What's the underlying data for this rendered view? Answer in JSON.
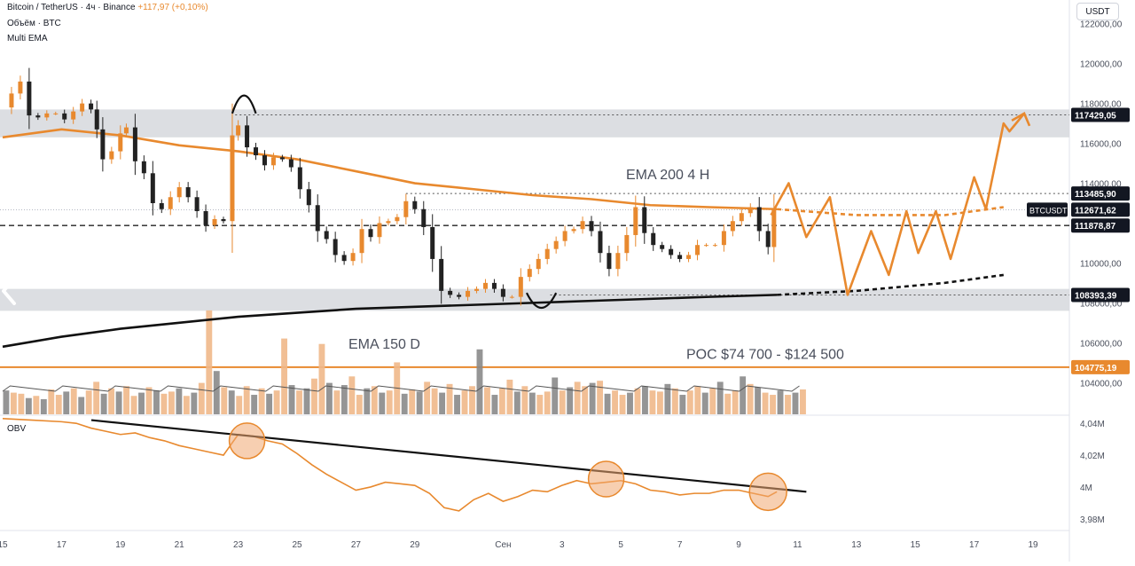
{
  "header": {
    "symbol_line": "Bitcoin / TetherUS · 4ч · Binance",
    "change": "+117,97 (+0,10%)",
    "volume_label": "Объём · BTC",
    "ema_label": "Multi EMA",
    "currency": "USDT"
  },
  "chart_data": {
    "type": "candlestick",
    "price_axis": {
      "ticks": [
        {
          "value": 122000,
          "label": "122000,00"
        },
        {
          "value": 120000,
          "label": "120000,00"
        },
        {
          "value": 118000,
          "label": "118000,00"
        },
        {
          "value": 116000,
          "label": "116000,00"
        },
        {
          "value": 114000,
          "label": "114000,00"
        },
        {
          "value": 112000,
          "label": "112000,00"
        },
        {
          "value": 110000,
          "label": "110000,00"
        },
        {
          "value": 108000,
          "label": "108000,00"
        },
        {
          "value": 106000,
          "label": "106000,00"
        },
        {
          "value": 104000,
          "label": "104000,00"
        }
      ],
      "range": [
        103700,
        122300
      ]
    },
    "price_labels": [
      {
        "value": 117429.05,
        "label": "117429,05",
        "style": "dark",
        "line": "dotted"
      },
      {
        "value": 113485.9,
        "label": "113485,90",
        "style": "dark",
        "line": "dotted"
      },
      {
        "value": 112671.62,
        "label": "112671,62",
        "style": "dark",
        "line": "none"
      },
      {
        "value": 111878.87,
        "label": "111878,87",
        "style": "dark",
        "line": "dashed"
      },
      {
        "value": 108393.39,
        "label": "108393,39",
        "style": "dark",
        "line": "dotted"
      },
      {
        "value": 104775.19,
        "label": "104775,19",
        "style": "orange",
        "line": "solid"
      }
    ],
    "symbol_tag": "BTCUSDT",
    "zones": [
      {
        "from": 116300,
        "to": 117700
      },
      {
        "from": 107600,
        "to": 108700
      }
    ],
    "date_axis": {
      "ticks": [
        {
          "day": 15,
          "label": "15"
        },
        {
          "day": 17,
          "label": "17"
        },
        {
          "day": 19,
          "label": "19"
        },
        {
          "day": 21,
          "label": "21"
        },
        {
          "day": 23,
          "label": "23"
        },
        {
          "day": 25,
          "label": "25"
        },
        {
          "day": 27,
          "label": "27"
        },
        {
          "day": 29,
          "label": "29"
        },
        {
          "day": 32,
          "label": "Сен"
        },
        {
          "day": 34,
          "label": "3"
        },
        {
          "day": 36,
          "label": "5"
        },
        {
          "day": 38,
          "label": "7"
        },
        {
          "day": 40,
          "label": "9"
        },
        {
          "day": 42,
          "label": "11"
        },
        {
          "day": 44,
          "label": "13"
        },
        {
          "day": 46,
          "label": "15"
        },
        {
          "day": 48,
          "label": "17"
        },
        {
          "day": 50,
          "label": "19"
        }
      ],
      "range": [
        15,
        50.2
      ]
    },
    "candles_close_path": [
      [
        15.0,
        117800
      ],
      [
        15.3,
        118500
      ],
      [
        15.6,
        119100
      ],
      [
        15.9,
        117400
      ],
      [
        16.2,
        117300
      ],
      [
        16.5,
        117500
      ],
      [
        16.8,
        117500
      ],
      [
        17.1,
        117200
      ],
      [
        17.4,
        117600
      ],
      [
        17.7,
        118000
      ],
      [
        18.0,
        117700
      ],
      [
        18.2,
        116700
      ],
      [
        18.4,
        115200
      ],
      [
        18.7,
        115600
      ],
      [
        19.0,
        116500
      ],
      [
        19.2,
        116800
      ],
      [
        19.5,
        115100
      ],
      [
        19.8,
        114500
      ],
      [
        20.1,
        113000
      ],
      [
        20.4,
        112700
      ],
      [
        20.7,
        113300
      ],
      [
        21.0,
        113800
      ],
      [
        21.3,
        113300
      ],
      [
        21.6,
        112600
      ],
      [
        21.9,
        111900
      ],
      [
        22.2,
        112200
      ],
      [
        22.5,
        112100
      ],
      [
        22.8,
        116400
      ],
      [
        23.0,
        116900
      ],
      [
        23.3,
        115800
      ],
      [
        23.6,
        115400
      ],
      [
        23.9,
        114900
      ],
      [
        24.2,
        115300
      ],
      [
        24.5,
        115200
      ],
      [
        24.8,
        114800
      ],
      [
        25.1,
        113700
      ],
      [
        25.4,
        112900
      ],
      [
        25.7,
        111600
      ],
      [
        26.0,
        111200
      ],
      [
        26.3,
        110400
      ],
      [
        26.6,
        110100
      ],
      [
        26.9,
        110500
      ],
      [
        27.2,
        111700
      ],
      [
        27.5,
        111300
      ],
      [
        27.8,
        112000
      ],
      [
        28.1,
        112100
      ],
      [
        28.4,
        112300
      ],
      [
        28.7,
        113100
      ],
      [
        29.0,
        112700
      ],
      [
        29.3,
        111800
      ],
      [
        29.6,
        110200
      ],
      [
        29.9,
        108600
      ],
      [
        30.2,
        108400
      ],
      [
        30.5,
        108300
      ],
      [
        30.8,
        108600
      ],
      [
        31.1,
        108700
      ],
      [
        31.4,
        109000
      ],
      [
        31.7,
        108700
      ],
      [
        32.0,
        108300
      ],
      [
        32.3,
        108300
      ],
      [
        32.6,
        109300
      ],
      [
        32.9,
        109700
      ],
      [
        33.2,
        110200
      ],
      [
        33.5,
        110700
      ],
      [
        33.8,
        111100
      ],
      [
        34.1,
        111600
      ],
      [
        34.4,
        111700
      ],
      [
        34.7,
        112100
      ],
      [
        35.0,
        111600
      ],
      [
        35.3,
        110500
      ],
      [
        35.6,
        109700
      ],
      [
        35.9,
        110500
      ],
      [
        36.2,
        111400
      ],
      [
        36.5,
        112800
      ],
      [
        36.8,
        111500
      ],
      [
        37.1,
        110900
      ],
      [
        37.4,
        110700
      ],
      [
        37.7,
        110400
      ],
      [
        38.0,
        110200
      ],
      [
        38.3,
        110400
      ],
      [
        38.6,
        110900
      ],
      [
        38.9,
        110900
      ],
      [
        39.2,
        110900
      ],
      [
        39.5,
        111600
      ],
      [
        39.8,
        112100
      ],
      [
        40.1,
        112500
      ],
      [
        40.4,
        112800
      ],
      [
        40.7,
        111600
      ],
      [
        41.0,
        110800
      ],
      [
        41.2,
        112700
      ]
    ],
    "ema_4h": [
      [
        15,
        116300
      ],
      [
        17,
        116700
      ],
      [
        19,
        116400
      ],
      [
        21,
        115900
      ],
      [
        23,
        115600
      ],
      [
        25,
        115200
      ],
      [
        27,
        114600
      ],
      [
        29,
        114000
      ],
      [
        31,
        113700
      ],
      [
        33,
        113400
      ],
      [
        35,
        113200
      ],
      [
        37,
        112900
      ],
      [
        39,
        112800
      ],
      [
        41.3,
        112700
      ]
    ],
    "ema_4h_projection": [
      [
        41.3,
        112700
      ],
      [
        44,
        112400
      ],
      [
        47,
        112400
      ],
      [
        49,
        112800
      ]
    ],
    "ema_150d": [
      [
        15,
        105800
      ],
      [
        17,
        106300
      ],
      [
        19,
        106700
      ],
      [
        21,
        107000
      ],
      [
        23,
        107300
      ],
      [
        25,
        107500
      ],
      [
        27,
        107700
      ],
      [
        29,
        107800
      ],
      [
        31,
        107900
      ],
      [
        33,
        108000
      ],
      [
        35,
        108100
      ],
      [
        37,
        108200
      ],
      [
        39,
        108300
      ],
      [
        41.3,
        108400
      ]
    ],
    "ema_150d_projection": [
      [
        41.3,
        108400
      ],
      [
        44,
        108600
      ],
      [
        47,
        109000
      ],
      [
        49,
        109400
      ]
    ],
    "forecast_path": [
      [
        41.1,
        112400
      ],
      [
        41.7,
        114000
      ],
      [
        42.3,
        111300
      ],
      [
        43.1,
        113300
      ],
      [
        43.7,
        108400
      ],
      [
        44.5,
        111600
      ],
      [
        45.1,
        109400
      ],
      [
        45.7,
        112600
      ],
      [
        46.1,
        110500
      ],
      [
        46.7,
        112600
      ],
      [
        47.2,
        110200
      ],
      [
        48.0,
        114300
      ],
      [
        48.4,
        112700
      ],
      [
        49.0,
        117000
      ],
      [
        49.2,
        116600
      ],
      [
        49.7,
        117500
      ],
      [
        49.5,
        116900
      ]
    ],
    "volume_profile_line": {
      "value": 104775.19
    },
    "obv": {
      "axis": {
        "ticks": [
          {
            "value": 4.04,
            "label": "4,04M"
          },
          {
            "value": 4.02,
            "label": "4,02M"
          },
          {
            "value": 4.0,
            "label": "4M"
          },
          {
            "value": 3.98,
            "label": "3,98M"
          }
        ],
        "range": [
          3.976,
          4.044
        ]
      },
      "series": [
        [
          15,
          4.043
        ],
        [
          16,
          4.042
        ],
        [
          17,
          4.041
        ],
        [
          17.5,
          4.04
        ],
        [
          18,
          4.037
        ],
        [
          18.5,
          4.035
        ],
        [
          19,
          4.033
        ],
        [
          19.5,
          4.034
        ],
        [
          20,
          4.031
        ],
        [
          20.5,
          4.029
        ],
        [
          21,
          4.026
        ],
        [
          21.5,
          4.024
        ],
        [
          22,
          4.022
        ],
        [
          22.5,
          4.02
        ],
        [
          23,
          4.033
        ],
        [
          23.5,
          4.032
        ],
        [
          24,
          4.029
        ],
        [
          24.5,
          4.027
        ],
        [
          25,
          4.021
        ],
        [
          25.5,
          4.014
        ],
        [
          26,
          4.008
        ],
        [
          26.5,
          4.003
        ],
        [
          27,
          3.998
        ],
        [
          27.5,
          4.0
        ],
        [
          28,
          4.003
        ],
        [
          28.5,
          4.002
        ],
        [
          29,
          4.001
        ],
        [
          29.5,
          3.996
        ],
        [
          30,
          3.987
        ],
        [
          30.5,
          3.985
        ],
        [
          31,
          3.992
        ],
        [
          31.5,
          3.996
        ],
        [
          32,
          3.991
        ],
        [
          32.5,
          3.994
        ],
        [
          33,
          3.998
        ],
        [
          33.5,
          3.997
        ],
        [
          34,
          4.001
        ],
        [
          34.5,
          4.004
        ],
        [
          35,
          4.002
        ],
        [
          35.5,
          4.003
        ],
        [
          36,
          4.004
        ],
        [
          36.5,
          4.002
        ],
        [
          37,
          3.998
        ],
        [
          37.5,
          3.997
        ],
        [
          38,
          3.995
        ],
        [
          38.5,
          3.996
        ],
        [
          39,
          3.996
        ],
        [
          39.5,
          3.998
        ],
        [
          40,
          3.998
        ],
        [
          40.5,
          3.996
        ],
        [
          41,
          3.994
        ],
        [
          41.3,
          3.997
        ]
      ],
      "trend_line": [
        [
          15,
          4.045
        ],
        [
          42.3,
          3.997
        ]
      ]
    },
    "annotations": [
      {
        "text": "EMA 200 4 H"
      },
      {
        "text": "EMA 150 D"
      },
      {
        "text": "POC $74 700 - $124 500"
      }
    ],
    "pane_labels": {
      "obv": "OBV"
    }
  }
}
